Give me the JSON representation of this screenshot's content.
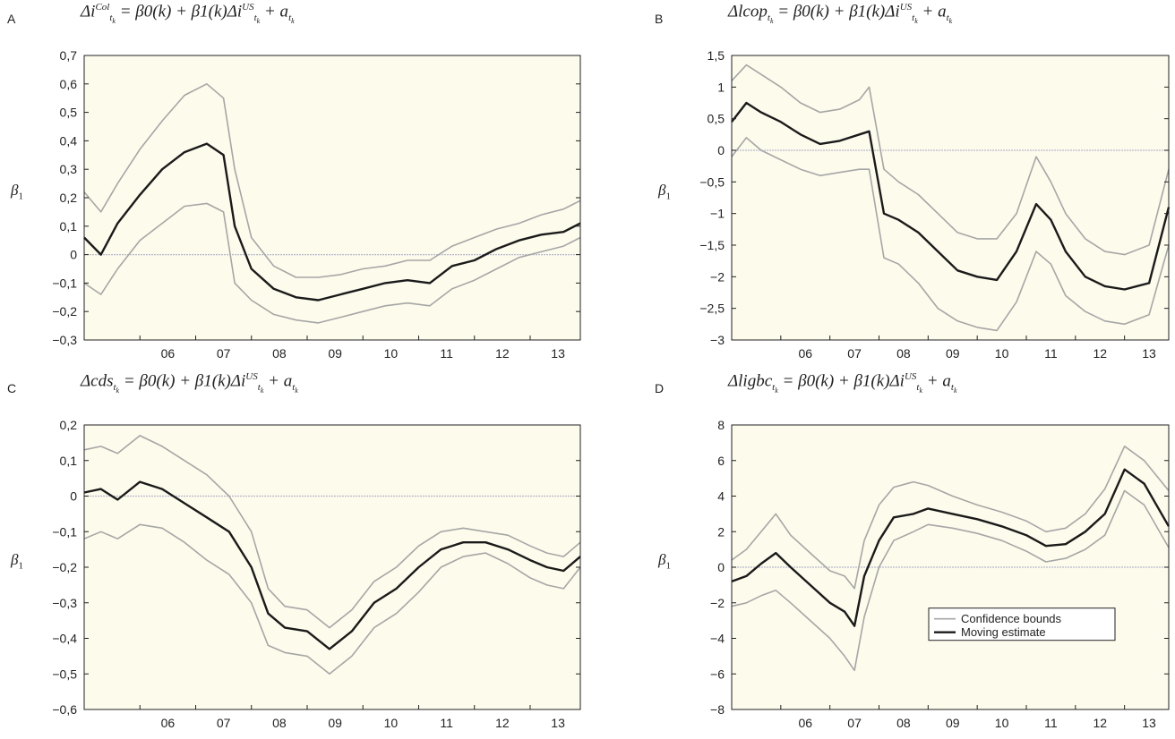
{
  "chart_data": [
    {
      "type": "line",
      "panel": "A",
      "title": "Δi^Col_tk = β0(k) + β1(k)Δi^US_tk + a_tk",
      "title_parts": {
        "lhs_base": "Δi",
        "lhs_sup": "Col",
        "lhs_sub": "t",
        "lhs_subsub": "k",
        "rhs": "= β0(k) + β1(k)Δi",
        "rhs_sup": "US",
        "tail": "+ a"
      },
      "xlabel": "",
      "ylabel": "β1",
      "x_ticks": [
        "06",
        "07",
        "08",
        "09",
        "10",
        "11",
        "12",
        "13"
      ],
      "x_tick_values": [
        2006,
        2007,
        2008,
        2009,
        2010,
        2011,
        2012,
        2013
      ],
      "xlim": [
        2005.0,
        2013.9
      ],
      "y_ticks": [
        "0,7",
        "0,6",
        "0,5",
        "0,4",
        "0,3",
        "0,2",
        "0,1",
        "0",
        "−0,1",
        "−0,2",
        "−0,3"
      ],
      "y_tick_values": [
        0.7,
        0.6,
        0.5,
        0.4,
        0.3,
        0.2,
        0.1,
        0,
        -0.1,
        -0.2,
        -0.3
      ],
      "ylim": [
        -0.3,
        0.7
      ],
      "x": [
        2005.0,
        2005.3,
        2005.6,
        2006.0,
        2006.4,
        2006.8,
        2007.2,
        2007.5,
        2007.7,
        2008.0,
        2008.4,
        2008.8,
        2009.2,
        2009.6,
        2010.0,
        2010.4,
        2010.8,
        2011.2,
        2011.6,
        2012.0,
        2012.4,
        2012.8,
        2013.2,
        2013.6,
        2013.9
      ],
      "series": [
        {
          "name": "Moving estimate",
          "values": [
            0.06,
            0.0,
            0.11,
            0.21,
            0.3,
            0.36,
            0.39,
            0.35,
            0.1,
            -0.05,
            -0.12,
            -0.15,
            -0.16,
            -0.14,
            -0.12,
            -0.1,
            -0.09,
            -0.1,
            -0.04,
            -0.02,
            0.02,
            0.05,
            0.07,
            0.08,
            0.11
          ]
        },
        {
          "name": "Confidence bounds",
          "values": [
            0.22,
            0.15,
            0.25,
            0.37,
            0.47,
            0.56,
            0.6,
            0.55,
            0.3,
            0.06,
            -0.04,
            -0.08,
            -0.08,
            -0.07,
            -0.05,
            -0.04,
            -0.02,
            -0.02,
            0.03,
            0.06,
            0.09,
            0.11,
            0.14,
            0.16,
            0.19
          ]
        },
        {
          "name": "Confidence bounds",
          "values": [
            -0.1,
            -0.14,
            -0.05,
            0.05,
            0.11,
            0.17,
            0.18,
            0.15,
            -0.1,
            -0.16,
            -0.21,
            -0.23,
            -0.24,
            -0.22,
            -0.2,
            -0.18,
            -0.17,
            -0.18,
            -0.12,
            -0.09,
            -0.05,
            -0.01,
            0.01,
            0.03,
            0.06
          ]
        }
      ],
      "grid": false
    },
    {
      "type": "line",
      "panel": "B",
      "title": "Δlcop_tk = β0(k) + β1(k)Δi^US_tk + a_tk",
      "title_parts": {
        "lhs_base": "Δlcop",
        "lhs_sup": "",
        "lhs_sub": "t",
        "lhs_subsub": "k",
        "rhs": "= β0(k) + β1(k)Δi",
        "rhs_sup": "US",
        "tail": "+ a"
      },
      "xlabel": "",
      "ylabel": "β1",
      "x_ticks": [
        "06",
        "07",
        "08",
        "09",
        "10",
        "11",
        "12",
        "13"
      ],
      "x_tick_values": [
        2006,
        2007,
        2008,
        2009,
        2010,
        2011,
        2012,
        2013
      ],
      "xlim": [
        2005.0,
        2013.9
      ],
      "y_ticks": [
        "1,5",
        "1",
        "0,5",
        "0",
        "−0,5",
        "−1",
        "−1,5",
        "−2",
        "−2,5",
        "−3"
      ],
      "y_tick_values": [
        1.5,
        1,
        0.5,
        0,
        -0.5,
        -1,
        -1.5,
        -2,
        -2.5,
        -3
      ],
      "ylim": [
        -3,
        1.5
      ],
      "x": [
        2005.0,
        2005.3,
        2005.6,
        2006.0,
        2006.4,
        2006.8,
        2007.2,
        2007.6,
        2007.8,
        2008.1,
        2008.4,
        2008.8,
        2009.2,
        2009.6,
        2010.0,
        2010.4,
        2010.8,
        2011.2,
        2011.5,
        2011.8,
        2012.2,
        2012.6,
        2013.0,
        2013.5,
        2013.9
      ],
      "series": [
        {
          "name": "Moving estimate",
          "values": [
            0.45,
            0.75,
            0.6,
            0.45,
            0.25,
            0.1,
            0.15,
            0.25,
            0.3,
            -1.0,
            -1.1,
            -1.3,
            -1.6,
            -1.9,
            -2.0,
            -2.05,
            -1.6,
            -0.85,
            -1.1,
            -1.6,
            -2.0,
            -2.15,
            -2.2,
            -2.1,
            -0.9
          ]
        },
        {
          "name": "Confidence bounds",
          "values": [
            1.1,
            1.35,
            1.2,
            1.0,
            0.75,
            0.6,
            0.65,
            0.8,
            1.0,
            -0.3,
            -0.5,
            -0.7,
            -1.0,
            -1.3,
            -1.4,
            -1.4,
            -1.0,
            -0.1,
            -0.5,
            -1.0,
            -1.4,
            -1.6,
            -1.65,
            -1.5,
            -0.3
          ]
        },
        {
          "name": "Confidence bounds",
          "values": [
            -0.1,
            0.2,
            0.0,
            -0.15,
            -0.3,
            -0.4,
            -0.35,
            -0.3,
            -0.3,
            -1.7,
            -1.8,
            -2.1,
            -2.5,
            -2.7,
            -2.8,
            -2.85,
            -2.4,
            -1.6,
            -1.8,
            -2.3,
            -2.55,
            -2.7,
            -2.75,
            -2.6,
            -1.5
          ]
        }
      ],
      "grid": false
    },
    {
      "type": "line",
      "panel": "C",
      "title": "Δcds_tk = β0(k) + β1(k)Δi^US_tk + a_tk",
      "title_parts": {
        "lhs_base": "Δcds",
        "lhs_sup": "",
        "lhs_sub": "t",
        "lhs_subsub": "k",
        "rhs": "= β0(k) + β1(k)Δi",
        "rhs_sup": "US",
        "tail": "+ a"
      },
      "xlabel": "",
      "ylabel": "β1",
      "x_ticks": [
        "06",
        "07",
        "08",
        "09",
        "10",
        "11",
        "12",
        "13"
      ],
      "x_tick_values": [
        2006,
        2007,
        2008,
        2009,
        2010,
        2011,
        2012,
        2013
      ],
      "xlim": [
        2005.0,
        2013.9
      ],
      "y_ticks": [
        "0,2",
        "0,1",
        "0",
        "−0,1",
        "−0,2",
        "−0,3",
        "−0,4",
        "−0,5",
        "−0,6"
      ],
      "y_tick_values": [
        0.2,
        0.1,
        0,
        -0.1,
        -0.2,
        -0.3,
        -0.4,
        -0.5,
        -0.6
      ],
      "ylim": [
        -0.6,
        0.2
      ],
      "x": [
        2005.0,
        2005.3,
        2005.6,
        2006.0,
        2006.4,
        2006.8,
        2007.2,
        2007.6,
        2008.0,
        2008.3,
        2008.6,
        2009.0,
        2009.4,
        2009.8,
        2010.2,
        2010.6,
        2011.0,
        2011.4,
        2011.8,
        2012.2,
        2012.6,
        2013.0,
        2013.3,
        2013.6,
        2013.9
      ],
      "series": [
        {
          "name": "Moving estimate",
          "values": [
            0.01,
            0.02,
            -0.01,
            0.04,
            0.02,
            -0.02,
            -0.06,
            -0.1,
            -0.2,
            -0.33,
            -0.37,
            -0.38,
            -0.43,
            -0.38,
            -0.3,
            -0.26,
            -0.2,
            -0.15,
            -0.13,
            -0.13,
            -0.15,
            -0.18,
            -0.2,
            -0.21,
            -0.17
          ]
        },
        {
          "name": "Confidence bounds",
          "values": [
            0.13,
            0.14,
            0.12,
            0.17,
            0.14,
            0.1,
            0.06,
            0.0,
            -0.1,
            -0.26,
            -0.31,
            -0.32,
            -0.37,
            -0.32,
            -0.24,
            -0.2,
            -0.14,
            -0.1,
            -0.09,
            -0.1,
            -0.11,
            -0.14,
            -0.16,
            -0.17,
            -0.13
          ]
        },
        {
          "name": "Confidence bounds",
          "values": [
            -0.12,
            -0.1,
            -0.12,
            -0.08,
            -0.09,
            -0.13,
            -0.18,
            -0.22,
            -0.3,
            -0.42,
            -0.44,
            -0.45,
            -0.5,
            -0.45,
            -0.37,
            -0.33,
            -0.27,
            -0.2,
            -0.17,
            -0.16,
            -0.19,
            -0.23,
            -0.25,
            -0.26,
            -0.2
          ]
        }
      ],
      "grid": false
    },
    {
      "type": "line",
      "panel": "D",
      "title": "Δligbc_tk = β0(k) + β1(k)Δi^US_tk + a_tk",
      "title_parts": {
        "lhs_base": "Δligbc",
        "lhs_sup": "",
        "lhs_sub": "t",
        "lhs_subsub": "k",
        "rhs": "= β0(k) + β1(k)Δi",
        "rhs_sup": "US",
        "tail": "+ a"
      },
      "xlabel": "",
      "ylabel": "β1",
      "x_ticks": [
        "06",
        "07",
        "08",
        "09",
        "10",
        "11",
        "12",
        "13"
      ],
      "x_tick_values": [
        2006,
        2007,
        2008,
        2009,
        2010,
        2011,
        2012,
        2013
      ],
      "xlim": [
        2005.0,
        2013.9
      ],
      "y_ticks": [
        "8",
        "6",
        "4",
        "2",
        "0",
        "−2",
        "−4",
        "−6",
        "−8"
      ],
      "y_tick_values": [
        8,
        6,
        4,
        2,
        0,
        -2,
        -4,
        -6,
        -8
      ],
      "ylim": [
        -8,
        8
      ],
      "x": [
        2005.0,
        2005.3,
        2005.6,
        2005.9,
        2006.2,
        2006.6,
        2007.0,
        2007.3,
        2007.5,
        2007.7,
        2008.0,
        2008.3,
        2008.7,
        2009.0,
        2009.5,
        2010.0,
        2010.5,
        2011.0,
        2011.4,
        2011.8,
        2012.2,
        2012.6,
        2013.0,
        2013.4,
        2013.9
      ],
      "series": [
        {
          "name": "Moving estimate",
          "values": [
            -0.8,
            -0.5,
            0.2,
            0.8,
            0.0,
            -1.0,
            -2.0,
            -2.5,
            -3.3,
            -0.5,
            1.5,
            2.8,
            3.0,
            3.3,
            3.0,
            2.7,
            2.3,
            1.8,
            1.2,
            1.3,
            2.0,
            3.0,
            5.5,
            4.7,
            2.3
          ]
        },
        {
          "name": "Confidence bounds",
          "values": [
            0.4,
            1.0,
            2.0,
            3.0,
            1.8,
            0.8,
            -0.2,
            -0.5,
            -1.2,
            1.5,
            3.5,
            4.5,
            4.8,
            4.6,
            4.0,
            3.5,
            3.1,
            2.6,
            2.0,
            2.2,
            3.0,
            4.4,
            6.8,
            6.0,
            4.3
          ]
        },
        {
          "name": "Confidence bounds",
          "values": [
            -2.2,
            -2.0,
            -1.6,
            -1.3,
            -2.0,
            -3.0,
            -4.0,
            -5.0,
            -5.8,
            -2.8,
            0.0,
            1.5,
            2.0,
            2.4,
            2.2,
            1.9,
            1.5,
            0.9,
            0.3,
            0.5,
            1.0,
            1.8,
            4.3,
            3.5,
            1.1
          ]
        }
      ],
      "legend": {
        "position": "lower-right",
        "entries": [
          "Confidence bounds",
          "Moving estimate"
        ]
      },
      "grid": false
    }
  ],
  "colors": {
    "plot_background": "#fdfbec",
    "estimate": "#1a1a1a",
    "bounds": "#a6a6a6",
    "zero_line": "#b8b8cc"
  }
}
